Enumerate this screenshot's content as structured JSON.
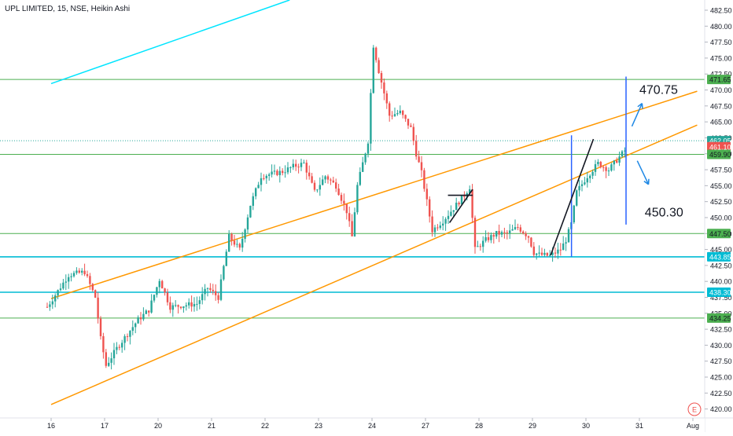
{
  "chart_data": {
    "type": "candlestick",
    "title": "UPL LIMITED, 15, NSE, Heikin Ashi",
    "y_axis": {
      "ylim": [
        418.6,
        484.1
      ],
      "ticks": [
        420.0,
        422.5,
        425.0,
        427.5,
        430.0,
        432.5,
        435.0,
        437.5,
        440.0,
        442.5,
        445.0,
        447.5,
        450.0,
        452.5,
        455.0,
        457.5,
        460.0,
        462.5,
        465.0,
        467.5,
        470.0,
        472.5,
        475.0,
        477.5,
        480.0,
        482.5
      ],
      "tick_labels": [
        "420.00",
        "422.50",
        "425.00",
        "427.50",
        "430.00",
        "432.50",
        "435.00",
        "437.50",
        "440.00",
        "442.50",
        "445.00",
        "447.50",
        "450.00",
        "452.50",
        "455.00",
        "457.50",
        "460.00",
        "462.50",
        "465.00",
        "467.50",
        "470.00",
        "472.50",
        "475.00",
        "477.50",
        "480.00",
        "482.50"
      ],
      "grid": false
    },
    "x_axis": {
      "tick_labels": [
        "16",
        "17",
        "20",
        "21",
        "22",
        "23",
        "24",
        "27",
        "28",
        "29",
        "30",
        "31",
        "Aug"
      ],
      "grid": false
    },
    "price_labels": [
      {
        "value": "471.65",
        "color": "#4caf50"
      },
      {
        "value": "462.05",
        "color": "#26a69a"
      },
      {
        "value": "461.10",
        "color": "#ef5350"
      },
      {
        "value": "459.90",
        "color": "#4caf50"
      },
      {
        "value": "447.50",
        "color": "#4caf50"
      },
      {
        "value": "443.85",
        "color": "#00bcd4"
      },
      {
        "value": "438.30",
        "color": "#00bcd4"
      },
      {
        "value": "434.25",
        "color": "#4caf50"
      }
    ],
    "horizontal_lines": [
      {
        "y": 471.65,
        "color": "#4caf50"
      },
      {
        "y": 459.9,
        "color": "#4caf50"
      },
      {
        "y": 447.5,
        "color": "#4caf50"
      },
      {
        "y": 443.85,
        "color": "#00bcd4"
      },
      {
        "y": 438.3,
        "color": "#00bcd4"
      },
      {
        "y": 434.25,
        "color": "#4caf50"
      }
    ],
    "last_price_line": {
      "y": 462.05,
      "color": "#26a69a"
    },
    "candle_path": [
      [
        0,
        436.0
      ],
      [
        4,
        441.0
      ],
      [
        7,
        441.5
      ],
      [
        9,
        437.5
      ],
      [
        10,
        431.0
      ],
      [
        11,
        426.8
      ],
      [
        13,
        429.5
      ],
      [
        17,
        434.0
      ],
      [
        19,
        435.5
      ],
      [
        21,
        440.3
      ],
      [
        23,
        436.0
      ],
      [
        28,
        436.5
      ],
      [
        30,
        439.0
      ],
      [
        32,
        437.5
      ],
      [
        34,
        447.0
      ],
      [
        36,
        445.0
      ],
      [
        38,
        452.0
      ],
      [
        40,
        456.5
      ],
      [
        44,
        457.2
      ],
      [
        46,
        458.0
      ],
      [
        48,
        458.5
      ],
      [
        50,
        454.0
      ],
      [
        52,
        456.5
      ],
      [
        54,
        455.0
      ],
      [
        56,
        451.0
      ],
      [
        57,
        447.0
      ],
      [
        58,
        455.0
      ],
      [
        60,
        462.0
      ],
      [
        61,
        477.0
      ],
      [
        62,
        473.0
      ],
      [
        64,
        466.0
      ],
      [
        66,
        466.5
      ],
      [
        68,
        464.0
      ],
      [
        69,
        460.0
      ],
      [
        70,
        457.0
      ],
      [
        72,
        448.0
      ],
      [
        74,
        449.5
      ],
      [
        76,
        451.5
      ],
      [
        78,
        453.5
      ],
      [
        79,
        454.8
      ],
      [
        80,
        445.0
      ],
      [
        82,
        446.5
      ],
      [
        84,
        447.5
      ],
      [
        86,
        447.5
      ],
      [
        88,
        448.5
      ],
      [
        90,
        447.0
      ],
      [
        91,
        444.5
      ],
      [
        92,
        444.2
      ],
      [
        94,
        444.0
      ],
      [
        96,
        445.0
      ],
      [
        97,
        446.5
      ],
      [
        98,
        449.0
      ],
      [
        99,
        454.0
      ],
      [
        101,
        456.5
      ],
      [
        103,
        458.5
      ],
      [
        105,
        457.5
      ],
      [
        106,
        458.5
      ],
      [
        107,
        459.5
      ],
      [
        108,
        460.5
      ]
    ],
    "channel_lines": [
      {
        "from": [
          0,
          420.7
        ],
        "to": [
          120.8,
          464.5
        ],
        "color": "#ff9800"
      },
      {
        "from": [
          0,
          437.3
        ],
        "to": [
          120.8,
          469.8
        ],
        "color": "#ff9800"
      },
      {
        "from": [
          0,
          471.0
        ],
        "to": [
          44.6,
          484.1
        ],
        "color": "#00e5ff"
      }
    ],
    "drawings": [
      {
        "type": "vertical",
        "x": 97.3,
        "y": [
          443.85,
          462.9
        ],
        "color": "#2962ff"
      },
      {
        "type": "vertical",
        "x": 107.5,
        "y": [
          448.9,
          472.1
        ],
        "color": "#2962ff"
      },
      {
        "type": "trendline",
        "from": [
          93.4,
          444.1
        ],
        "to": [
          101.4,
          462.3
        ],
        "color": "#131722"
      },
      {
        "type": "trendline",
        "from": [
          74.5,
          449.2
        ],
        "to": [
          78.8,
          454.4
        ],
        "color": "#131722"
      },
      {
        "type": "trendline",
        "from": [
          74.2,
          453.5
        ],
        "to": [
          78.8,
          453.5
        ],
        "color": "#131722"
      },
      {
        "type": "arrow",
        "from": [
          108.6,
          464.3
        ],
        "to": [
          110.5,
          467.9
        ],
        "color": "#1e88e5"
      },
      {
        "type": "arrow",
        "from": [
          109.6,
          458.9
        ],
        "to": [
          111.7,
          455.2
        ],
        "color": "#1e88e5"
      }
    ],
    "annotations": [
      {
        "text": "470.75",
        "x": 110.0,
        "y": 469.4
      },
      {
        "text": "450.30",
        "x": 111.0,
        "y": 450.2
      }
    ],
    "watermark": "E"
  }
}
